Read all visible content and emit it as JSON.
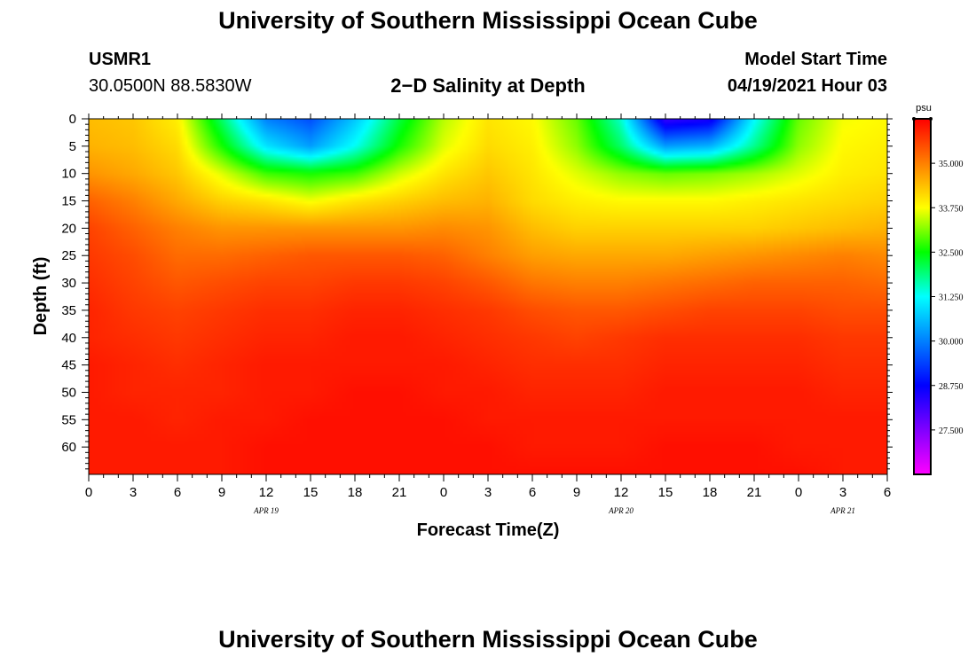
{
  "header": {
    "title": "University of Southern Mississippi Ocean Cube",
    "station_id": "USMR1",
    "station_coords": "30.0500N  88.5830W",
    "plot_title": "2−D Salinity at Depth",
    "model_start_label": "Model Start Time",
    "model_start_time": "04/19/2021 Hour 03"
  },
  "footer": {
    "title": "University of Southern Mississippi Ocean Cube"
  },
  "chart_data": {
    "type": "heatmap",
    "title": "2−D Salinity at Depth",
    "xlabel": "Forecast Time(Z)",
    "ylabel": "Depth (ft)",
    "x_range_hours": [
      0,
      54
    ],
    "x_tick_labels": [
      "0",
      "3",
      "6",
      "9",
      "12",
      "15",
      "18",
      "21",
      "0",
      "3",
      "6",
      "9",
      "12",
      "15",
      "18",
      "21",
      "0",
      "3",
      "6"
    ],
    "date_labels": [
      {
        "text": "APR  19",
        "hour": 12
      },
      {
        "text": "APR  20",
        "hour": 36
      },
      {
        "text": "APR  21",
        "hour": 51
      }
    ],
    "y_range_ft": [
      0,
      65
    ],
    "y_ticks": [
      0,
      5,
      10,
      15,
      20,
      25,
      30,
      35,
      40,
      45,
      50,
      55,
      60
    ],
    "colorbar": {
      "unit": "psu",
      "range": [
        26.25,
        36.25
      ],
      "tick_labels": [
        "27.500",
        "28.750",
        "30.000",
        "31.250",
        "32.500",
        "33.750",
        "35.000"
      ],
      "tick_values": [
        27.5,
        28.75,
        30.0,
        31.25,
        32.5,
        33.75,
        35.0
      ]
    },
    "salinity_grid": {
      "x_hours": [
        0,
        3,
        6,
        9,
        12,
        15,
        18,
        21,
        24,
        27,
        30,
        33,
        36,
        39,
        42,
        45,
        48,
        51,
        54
      ],
      "depth_ft": [
        0,
        5,
        10,
        15,
        20,
        25,
        30,
        35,
        40,
        45,
        50,
        55,
        60,
        65
      ],
      "values": [
        [
          34.4,
          34.3,
          33.9,
          32.0,
          30.0,
          29.5,
          30.7,
          32.2,
          33.4,
          34.0,
          33.8,
          33.0,
          31.5,
          28.2,
          28.5,
          31.2,
          33.0,
          33.7,
          33.8
        ],
        [
          34.5,
          34.4,
          34.1,
          32.6,
          31.0,
          30.3,
          31.3,
          32.6,
          33.6,
          34.1,
          33.9,
          33.2,
          32.0,
          30.3,
          30.5,
          31.8,
          33.2,
          33.8,
          33.9
        ],
        [
          34.8,
          34.6,
          34.3,
          33.6,
          32.8,
          32.6,
          32.8,
          33.5,
          34.0,
          34.3,
          34.0,
          33.6,
          33.2,
          33.0,
          33.1,
          33.3,
          33.6,
          33.9,
          34.0
        ],
        [
          35.3,
          35.0,
          34.6,
          34.2,
          34.0,
          33.7,
          34.0,
          34.2,
          34.4,
          34.5,
          34.1,
          33.9,
          33.8,
          33.8,
          33.8,
          33.9,
          34.0,
          34.1,
          34.2
        ],
        [
          35.6,
          35.3,
          35.0,
          34.8,
          34.8,
          34.8,
          34.8,
          34.8,
          34.9,
          34.8,
          34.4,
          34.2,
          34.2,
          34.2,
          34.2,
          34.2,
          34.3,
          34.4,
          34.5
        ],
        [
          35.7,
          35.5,
          35.2,
          35.2,
          35.3,
          35.4,
          35.4,
          35.4,
          35.3,
          35.0,
          34.7,
          34.6,
          34.6,
          34.6,
          34.7,
          34.8,
          34.9,
          35.0,
          34.9
        ],
        [
          35.8,
          35.6,
          35.4,
          35.5,
          35.6,
          35.6,
          35.7,
          35.7,
          35.6,
          35.4,
          35.1,
          35.0,
          35.0,
          35.1,
          35.2,
          35.3,
          35.3,
          35.3,
          35.2
        ],
        [
          35.9,
          35.7,
          35.6,
          35.7,
          35.8,
          35.8,
          35.9,
          35.9,
          35.8,
          35.7,
          35.5,
          35.4,
          35.4,
          35.5,
          35.6,
          35.6,
          35.6,
          35.5,
          35.5
        ],
        [
          35.9,
          35.8,
          35.7,
          35.8,
          35.9,
          35.9,
          36.0,
          36.0,
          35.9,
          35.8,
          35.7,
          35.6,
          35.7,
          35.8,
          35.8,
          35.8,
          35.8,
          35.7,
          35.7
        ],
        [
          36.0,
          35.9,
          35.8,
          35.9,
          36.0,
          36.0,
          36.0,
          36.0,
          36.0,
          35.9,
          35.8,
          35.8,
          35.8,
          35.9,
          35.9,
          35.9,
          35.9,
          35.8,
          35.8
        ],
        [
          36.0,
          35.9,
          35.9,
          35.9,
          36.0,
          36.0,
          36.1,
          36.1,
          36.0,
          36.0,
          35.9,
          35.9,
          35.9,
          36.0,
          36.0,
          36.0,
          36.0,
          35.9,
          35.9
        ],
        [
          36.0,
          36.0,
          35.9,
          36.0,
          36.0,
          36.1,
          36.1,
          36.1,
          36.1,
          36.0,
          36.0,
          36.0,
          36.0,
          36.0,
          36.0,
          36.0,
          36.0,
          36.0,
          36.0
        ],
        [
          36.0,
          36.0,
          36.0,
          36.0,
          36.1,
          36.1,
          36.1,
          36.1,
          36.1,
          36.1,
          36.0,
          36.0,
          36.0,
          36.1,
          36.1,
          36.1,
          36.0,
          36.0,
          36.0
        ],
        [
          36.0,
          36.0,
          36.0,
          36.0,
          36.1,
          36.1,
          36.1,
          36.1,
          36.1,
          36.1,
          36.1,
          36.1,
          36.1,
          36.1,
          36.1,
          36.1,
          36.1,
          36.0,
          36.0
        ]
      ]
    }
  }
}
